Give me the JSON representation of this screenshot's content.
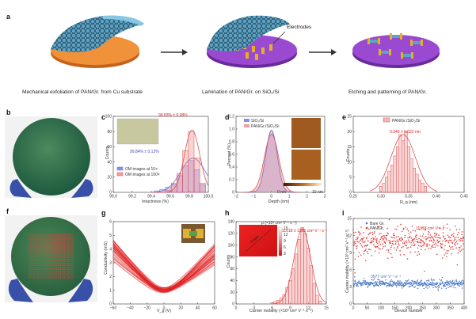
{
  "panels": {
    "a": {
      "label": "a",
      "captions": [
        "Mechanical exfoliation of PAN/Gr. from Cu substrate",
        "Lamination of PAN/Gr. on SiO₂/Si",
        "Etching and patterning of PAN/Gr."
      ],
      "electrodes_label": "Electrodes"
    },
    "b": {
      "label": "b"
    },
    "c": {
      "label": "c"
    },
    "d": {
      "label": "d"
    },
    "e": {
      "label": "e"
    },
    "f": {
      "label": "f"
    },
    "g": {
      "label": "g"
    },
    "h": {
      "label": "h"
    },
    "i": {
      "label": "i"
    }
  },
  "chart_data": [
    {
      "id": "c",
      "type": "bar",
      "xlabel": "Intactness (%)",
      "ylabel": "Counts",
      "xlim": [
        99.0,
        100.0
      ],
      "ylim": [
        0,
        100
      ],
      "xticks": [
        "99.0",
        "99.2",
        "99.4",
        "99.6",
        "99.8",
        "100.0"
      ],
      "yticks": [
        "0",
        "20",
        "40",
        "60",
        "80",
        "100"
      ],
      "series": [
        {
          "name": "OM images at 10×",
          "color": "#6b72d8",
          "mean_label": "99.84% ± 0.13%",
          "bins": [
            99.46,
            99.52,
            99.58,
            99.64,
            99.7,
            99.76,
            99.82,
            99.88,
            99.94
          ],
          "values": [
            2,
            4,
            7,
            12,
            22,
            35,
            42,
            30,
            10
          ]
        },
        {
          "name": "OM images at 100×",
          "color": "#e05050",
          "mean_label": "99.83% ± 0.08%",
          "bins": [
            99.58,
            99.64,
            99.7,
            99.76,
            99.82,
            99.88,
            99.94
          ],
          "values": [
            3,
            10,
            25,
            55,
            80,
            45,
            12
          ]
        }
      ]
    },
    {
      "id": "d",
      "type": "area",
      "xlabel": "Depth (nm)",
      "ylabel": "Percent (%)",
      "xlim": [
        -2,
        3
      ],
      "ylim": [
        0,
        1.2
      ],
      "xticks": [
        "−2",
        "−1",
        "0",
        "1",
        "2",
        "3"
      ],
      "yticks": [
        "0",
        "0.2",
        "0.4",
        "0.6",
        "0.8",
        "1.0",
        "1.2"
      ],
      "series": [
        {
          "name": "SiO₂/Si",
          "color": "#5560c8",
          "peak": 0.98,
          "sigma": 0.32
        },
        {
          "name": "PAN/Gr./SiO₂/Si",
          "color": "#e05050",
          "peak": 0.92,
          "sigma": 0.4
        }
      ],
      "inset_scale": [
        "0 nm",
        "10 nm"
      ]
    },
    {
      "id": "e",
      "type": "bar",
      "xlabel": "R_q (nm)",
      "ylabel": "Counts",
      "xlim": [
        0.25,
        0.45
      ],
      "ylim": [
        0,
        25
      ],
      "xticks": [
        "0.25",
        "0.30",
        "0.35",
        "0.40",
        "0.45"
      ],
      "yticks": [
        "0",
        "5",
        "10",
        "15",
        "20",
        "25"
      ],
      "legend": "PAN/Gr./SiO₂/Si",
      "mean_label": "0.340 ± 0.022 nm",
      "bins": [
        0.3,
        0.305,
        0.31,
        0.315,
        0.32,
        0.325,
        0.33,
        0.335,
        0.34,
        0.345,
        0.35,
        0.355,
        0.36,
        0.365,
        0.37,
        0.375,
        0.38
      ],
      "values": [
        2,
        3,
        5,
        7,
        9,
        12,
        15,
        19,
        17,
        20,
        15,
        11,
        8,
        6,
        4,
        3,
        2
      ]
    },
    {
      "id": "g",
      "type": "line",
      "xlabel": "V_g (V)",
      "ylabel": "Conductivity (mS)",
      "xlim": [
        -60,
        60
      ],
      "ylim": [
        0,
        6
      ],
      "xticks": [
        "−60",
        "−40",
        "−20",
        "0",
        "20",
        "40",
        "60"
      ],
      "yticks": [
        "0",
        "1",
        "2",
        "3",
        "4",
        "5",
        "6"
      ],
      "curve_count": 60,
      "dirac_point_v": 0,
      "min_conductivity": 0.8,
      "max_conductivity_range": [
        3.2,
        5.4
      ]
    },
    {
      "id": "h",
      "type": "bar",
      "xlabel": "Carrier mobility (×10³ cm² V⁻¹ s⁻¹)",
      "ylabel": "Counts",
      "xlim": [
        0,
        15
      ],
      "ylim": [
        0,
        140
      ],
      "xticks": [
        "0",
        "3",
        "6",
        "9",
        "12",
        "15"
      ],
      "yticks": [
        "0",
        "20",
        "40",
        "60",
        "80",
        "100",
        "120",
        "140"
      ],
      "mean_label": "11018 ± 1395 cm² V⁻¹ s⁻¹",
      "inset_colorbar_label": "μ (×10³ cm² V⁻¹ s⁻¹)",
      "inset_colorbar_ticks": [
        "15",
        "12",
        "9",
        "6",
        "3"
      ],
      "inset_text": "5 inch",
      "bins": [
        6,
        6.5,
        7,
        7.5,
        8,
        8.5,
        9,
        9.5,
        10,
        10.5,
        11,
        11.5,
        12,
        12.5,
        13,
        13.5,
        14
      ],
      "values": [
        2,
        4,
        6,
        10,
        16,
        28,
        40,
        60,
        85,
        110,
        130,
        120,
        95,
        65,
        35,
        15,
        5
      ]
    },
    {
      "id": "i",
      "type": "scatter",
      "xlabel": "Device number",
      "ylabel": "Carrier mobility (×10³ cm² V⁻¹ s⁻¹)",
      "xlim": [
        0,
        400
      ],
      "ylim": [
        0,
        15
      ],
      "xticks": [
        "0",
        "50",
        "100",
        "150",
        "200",
        "250",
        "300",
        "350",
        "400"
      ],
      "yticks": [
        "0",
        "3",
        "6",
        "9",
        "12",
        "15"
      ],
      "series": [
        {
          "name": "Bare Gr.",
          "color": "#4a78c8",
          "mean": 3.577,
          "mean_label": "3577 cm² V⁻¹ s⁻¹"
        },
        {
          "name": "PAN/Gr.",
          "color": "#e03030",
          "mean": 11.018,
          "mean_label": "11018 cm² V⁻¹ s⁻¹"
        }
      ],
      "device_count": 400
    }
  ]
}
